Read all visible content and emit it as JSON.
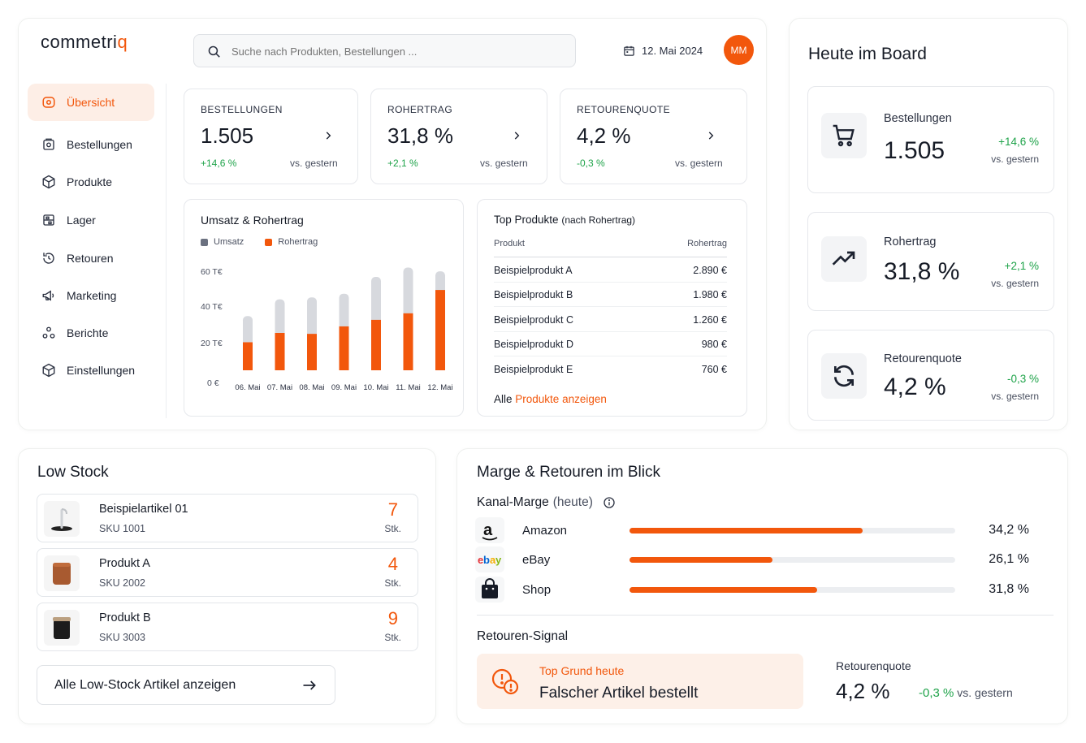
{
  "brand": {
    "name_main": "commetri",
    "name_accent": "q"
  },
  "search": {
    "placeholder": "Suche nach Produkten, Bestellungen ..."
  },
  "header": {
    "date": "12. Mai 2024",
    "avatar_initials": "MM"
  },
  "sidebar": {
    "items": [
      {
        "label": "Übersicht",
        "icon": "home-icon",
        "active": true
      },
      {
        "label": "Bestellungen",
        "icon": "orders-icon"
      },
      {
        "label": "Produkte",
        "icon": "box-icon"
      },
      {
        "label": "Lager",
        "icon": "warehouse-icon"
      },
      {
        "label": "Retouren",
        "icon": "return-icon"
      },
      {
        "label": "Marketing",
        "icon": "megaphone-icon"
      },
      {
        "label": "Berichte",
        "icon": "reports-icon"
      },
      {
        "label": "Einstellungen",
        "icon": "settings-icon"
      }
    ]
  },
  "kpis": [
    {
      "label": "BESTELLUNGEN",
      "value": "1.505",
      "delta": "+14,6 %",
      "vs": "vs. gestern"
    },
    {
      "label": "ROHERTRAG",
      "value": "31,8 %",
      "delta": "+2,1 %",
      "vs": "vs. gestern"
    },
    {
      "label": "RETOURENQUOTE",
      "value": "4,2 %",
      "delta": "-0,3 %",
      "vs": "vs. gestern"
    }
  ],
  "chart_data": {
    "type": "bar",
    "title": "Umsatz & Rohertrag",
    "categories": [
      "06. Mai",
      "07. Mai",
      "08. Mai",
      "09. Mai",
      "10. Mai",
      "11. Mai",
      "12. Mai"
    ],
    "series": [
      {
        "name": "Umsatz",
        "values": [
          29,
          38,
          39,
          41,
          50,
          55,
          53
        ],
        "color": "#d7d9de"
      },
      {
        "name": "Rohertrag",
        "values": [
          15,
          20,
          19.5,
          23.5,
          27,
          30.5,
          43
        ],
        "color": "#f2570c"
      }
    ],
    "yticks": [
      "60 T€",
      "40 T€",
      "20 T€",
      "0 €"
    ],
    "ylim": [
      0,
      60
    ],
    "legend": "top-left"
  },
  "top_products": {
    "title": "Top Produkte",
    "title_note": "(nach Rohertrag)",
    "col_product": "Produkt",
    "col_value": "Rohertrag",
    "rows": [
      {
        "name": "Beispielprodukt A",
        "value": "2.890 €"
      },
      {
        "name": "Beispielprodukt B",
        "value": "1.980 €"
      },
      {
        "name": "Beispielprodukt C",
        "value": "1.260 €"
      },
      {
        "name": "Beispielprodukt D",
        "value": "980 €"
      },
      {
        "name": "Beispielprodukt E",
        "value": "760 €"
      }
    ],
    "link_prefix": "Alle",
    "link_accent": "Produkte anzeigen"
  },
  "board": {
    "title": "Heute im Board",
    "cards": [
      {
        "label": "Bestellungen",
        "value": "1.505",
        "delta": "+14,6 %",
        "vs": "vs. gestern",
        "icon": "cart-icon"
      },
      {
        "label": "Rohertrag",
        "value": "31,8 %",
        "delta": "+2,1 %",
        "vs": "vs. gestern",
        "icon": "trend-up-icon"
      },
      {
        "label": "Retourenquote",
        "value": "4,2 %",
        "delta": "-0,3 %",
        "vs": "vs. gestern",
        "icon": "refresh-icon"
      }
    ]
  },
  "low_stock": {
    "title": "Low Stock",
    "items": [
      {
        "name": "Beispielartikel 01",
        "sku": "SKU 1001",
        "qty": "7",
        "unit": "Stk."
      },
      {
        "name": "Produkt A",
        "sku": "SKU 2002",
        "qty": "4",
        "unit": "Stk."
      },
      {
        "name": "Produkt B",
        "sku": "SKU 3003",
        "qty": "9",
        "unit": "Stk."
      }
    ],
    "all_link": "Alle Low-Stock Artikel anzeigen"
  },
  "margins": {
    "title": "Marge & Retouren im Blick",
    "channel_title": "Kanal-Marge",
    "channel_note": "(heute)",
    "channels": [
      {
        "name": "Amazon",
        "value": "34,2 %",
        "fill": 0.715,
        "icon": "amazon-icon"
      },
      {
        "name": "eBay",
        "value": "26,1 %",
        "fill": 0.44,
        "icon": "ebay-icon"
      },
      {
        "name": "Shop",
        "value": "31,8 %",
        "fill": 0.575,
        "icon": "shop-bag-icon"
      }
    ],
    "returns_title": "Retouren-Signal",
    "reason_label": "Top Grund heute",
    "reason_value": "Falscher Artikel bestellt",
    "rate_label": "Retourenquote",
    "rate_value": "4,2 %",
    "rate_delta": "-0,3 %",
    "rate_vs": "vs. gestern"
  }
}
